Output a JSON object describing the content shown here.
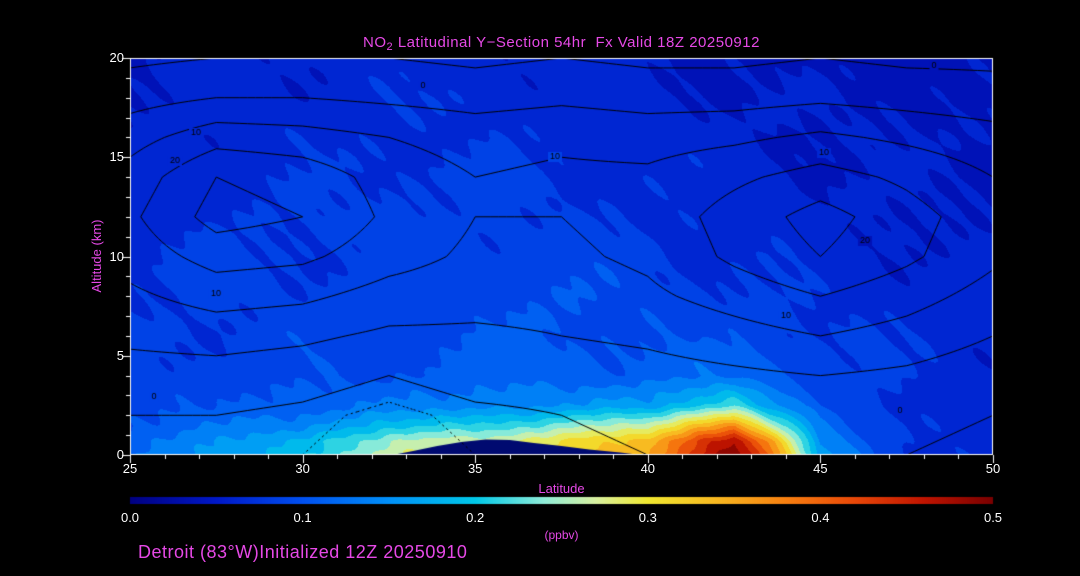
{
  "title": {
    "prefix": "NO",
    "sub": "2",
    "rest": " Latitudinal Y−Section 54hr  Fx Valid 18Z 20250912"
  },
  "footer": {
    "text": "Detroit (83°W)Initialized 12Z 20250910"
  },
  "colors": {
    "background": "#000000",
    "text_accent": "#e649e6",
    "tick_text": "#ffffff",
    "axis": "#ffffff",
    "terrain": "#000a70",
    "contour_line": "#000000"
  },
  "axes": {
    "x_label": "Latitude",
    "y_label": "Altitude (km)",
    "x_range": [
      25,
      50
    ],
    "y_range": [
      0,
      20
    ],
    "x_ticks": [
      25,
      30,
      35,
      40,
      45,
      50
    ],
    "y_ticks": [
      0,
      5,
      10,
      15,
      20
    ]
  },
  "colorbar": {
    "label": "(ppbv)",
    "min": 0.0,
    "max": 0.5,
    "tick_labels": [
      "0.0",
      "0.1",
      "0.2",
      "0.3",
      "0.4",
      "0.5"
    ],
    "stops": [
      [
        0.0,
        "#000082"
      ],
      [
        0.05,
        "#0018c8"
      ],
      [
        0.1,
        "#0050f0"
      ],
      [
        0.15,
        "#0090f8"
      ],
      [
        0.2,
        "#00c8e8"
      ],
      [
        0.24,
        "#90ecd8"
      ],
      [
        0.27,
        "#d8f0a0"
      ],
      [
        0.3,
        "#f0e830"
      ],
      [
        0.34,
        "#f8b820"
      ],
      [
        0.38,
        "#f88010"
      ],
      [
        0.42,
        "#e84808"
      ],
      [
        0.46,
        "#c01400"
      ],
      [
        0.5,
        "#7a0000"
      ]
    ]
  },
  "chart_data": {
    "type": "heatmap",
    "subtype": "filled-contour-cross-section",
    "title": "NO2 Latitudinal Y−Section 54hr Fx Valid 18Z 20250912",
    "xlabel": "Latitude",
    "ylabel": "Altitude (km)",
    "value_name": "NO2 (ppbv)",
    "fill_level_step": 0.025,
    "fill": {
      "lats": [
        25,
        27.5,
        30,
        32.5,
        35,
        37.5,
        40,
        41.5,
        42.5,
        43.5,
        45,
        47.5,
        50
      ],
      "alts": [
        0,
        0.7,
        1.5,
        2.5,
        4,
        6,
        8,
        10,
        12,
        14,
        16,
        18,
        20
      ],
      "values": [
        [
          0.13,
          0.15,
          0.2,
          0.26,
          0.3,
          0.32,
          0.34,
          0.46,
          0.5,
          0.4,
          0.16,
          0.08,
          0.06
        ],
        [
          0.12,
          0.14,
          0.19,
          0.24,
          0.27,
          0.3,
          0.33,
          0.44,
          0.48,
          0.36,
          0.14,
          0.08,
          0.06
        ],
        [
          0.1,
          0.12,
          0.15,
          0.18,
          0.21,
          0.23,
          0.26,
          0.34,
          0.38,
          0.26,
          0.12,
          0.08,
          0.06
        ],
        [
          0.09,
          0.1,
          0.11,
          0.13,
          0.14,
          0.15,
          0.16,
          0.2,
          0.22,
          0.16,
          0.1,
          0.07,
          0.06
        ],
        [
          0.08,
          0.09,
          0.09,
          0.1,
          0.11,
          0.11,
          0.11,
          0.12,
          0.12,
          0.11,
          0.09,
          0.07,
          0.06
        ],
        [
          0.08,
          0.08,
          0.09,
          0.09,
          0.1,
          0.1,
          0.1,
          0.09,
          0.09,
          0.09,
          0.08,
          0.07,
          0.06
        ],
        [
          0.07,
          0.08,
          0.08,
          0.09,
          0.09,
          0.1,
          0.09,
          0.08,
          0.08,
          0.08,
          0.07,
          0.06,
          0.06
        ],
        [
          0.07,
          0.08,
          0.08,
          0.08,
          0.09,
          0.09,
          0.08,
          0.07,
          0.07,
          0.07,
          0.06,
          0.06,
          0.05
        ],
        [
          0.06,
          0.07,
          0.08,
          0.08,
          0.08,
          0.08,
          0.07,
          0.07,
          0.06,
          0.06,
          0.06,
          0.05,
          0.05
        ],
        [
          0.06,
          0.07,
          0.07,
          0.08,
          0.08,
          0.07,
          0.07,
          0.06,
          0.06,
          0.06,
          0.05,
          0.05,
          0.05
        ],
        [
          0.06,
          0.06,
          0.07,
          0.07,
          0.07,
          0.07,
          0.06,
          0.06,
          0.06,
          0.05,
          0.05,
          0.05,
          0.05
        ],
        [
          0.05,
          0.06,
          0.06,
          0.07,
          0.07,
          0.06,
          0.06,
          0.05,
          0.05,
          0.05,
          0.05,
          0.05,
          0.04
        ],
        [
          0.05,
          0.05,
          0.06,
          0.06,
          0.06,
          0.06,
          0.05,
          0.05,
          0.05,
          0.04,
          0.04,
          0.04,
          0.04
        ]
      ]
    },
    "terrain": [
      [
        32.6,
        0
      ],
      [
        33.2,
        0.2
      ],
      [
        33.9,
        0.45
      ],
      [
        34.6,
        0.65
      ],
      [
        35.3,
        0.78
      ],
      [
        36.0,
        0.75
      ],
      [
        36.7,
        0.6
      ],
      [
        37.5,
        0.45
      ],
      [
        38.3,
        0.28
      ],
      [
        39.2,
        0.12
      ],
      [
        39.8,
        0.0
      ]
    ],
    "overlay_contours": {
      "lats": [
        25,
        27.5,
        30,
        32.5,
        35,
        37.5,
        40,
        42.5,
        45,
        47.5,
        50
      ],
      "alts": [
        0,
        2,
        4,
        6,
        8,
        10,
        12,
        14,
        16,
        18,
        20
      ],
      "values": [
        [
          -1,
          -1,
          -2,
          -4,
          -2,
          -1,
          0,
          1,
          1,
          0,
          -1
        ],
        [
          0,
          0,
          -1,
          -3,
          -1,
          0,
          1,
          2,
          2,
          1,
          0
        ],
        [
          3,
          3,
          2,
          0,
          2,
          2,
          3,
          4,
          5,
          4,
          2
        ],
        [
          6,
          7,
          6,
          4,
          4,
          5,
          6,
          8,
          10,
          8,
          5
        ],
        [
          9,
          12,
          11,
          8,
          7,
          7,
          9,
          12,
          15,
          12,
          8
        ],
        [
          12,
          17,
          16,
          12,
          9,
          9,
          11,
          16,
          20,
          16,
          11
        ],
        [
          14,
          22,
          20,
          14,
          10,
          10,
          12,
          17,
          22,
          17,
          12
        ],
        [
          12,
          20,
          18,
          13,
          10,
          11,
          11,
          14,
          17,
          14,
          10
        ],
        [
          8,
          13,
          12,
          10,
          8,
          9,
          8,
          9,
          11,
          9,
          7
        ],
        [
          3,
          5,
          5,
          4,
          3,
          4,
          3,
          3,
          4,
          3,
          2
        ],
        [
          -1,
          0,
          0,
          0,
          -1,
          0,
          -1,
          -1,
          0,
          -1,
          -1
        ]
      ],
      "levels": [
        {
          "value": -2,
          "style": "dotted"
        },
        {
          "value": 0,
          "style": "solid"
        },
        {
          "value": 5,
          "style": "solid"
        },
        {
          "value": 10,
          "style": "solid"
        },
        {
          "value": 15,
          "style": "solid"
        },
        {
          "value": 20,
          "style": "solid"
        }
      ],
      "labels": [
        {
          "text": "0",
          "lat": 33.5,
          "alt": 18.6
        },
        {
          "text": "0",
          "lat": 48.3,
          "alt": 19.6
        },
        {
          "text": "10",
          "lat": 26.9,
          "alt": 16.2
        },
        {
          "text": "20",
          "lat": 26.3,
          "alt": 14.8
        },
        {
          "text": "10",
          "lat": 37.3,
          "alt": 15.0
        },
        {
          "text": "10",
          "lat": 45.1,
          "alt": 15.2
        },
        {
          "text": "20",
          "lat": 46.3,
          "alt": 10.8
        },
        {
          "text": "10",
          "lat": 27.5,
          "alt": 8.1
        },
        {
          "text": "10",
          "lat": 44.0,
          "alt": 7.0
        },
        {
          "text": "0",
          "lat": 25.7,
          "alt": 2.9
        },
        {
          "text": "0",
          "lat": 47.3,
          "alt": 2.2
        }
      ]
    }
  }
}
